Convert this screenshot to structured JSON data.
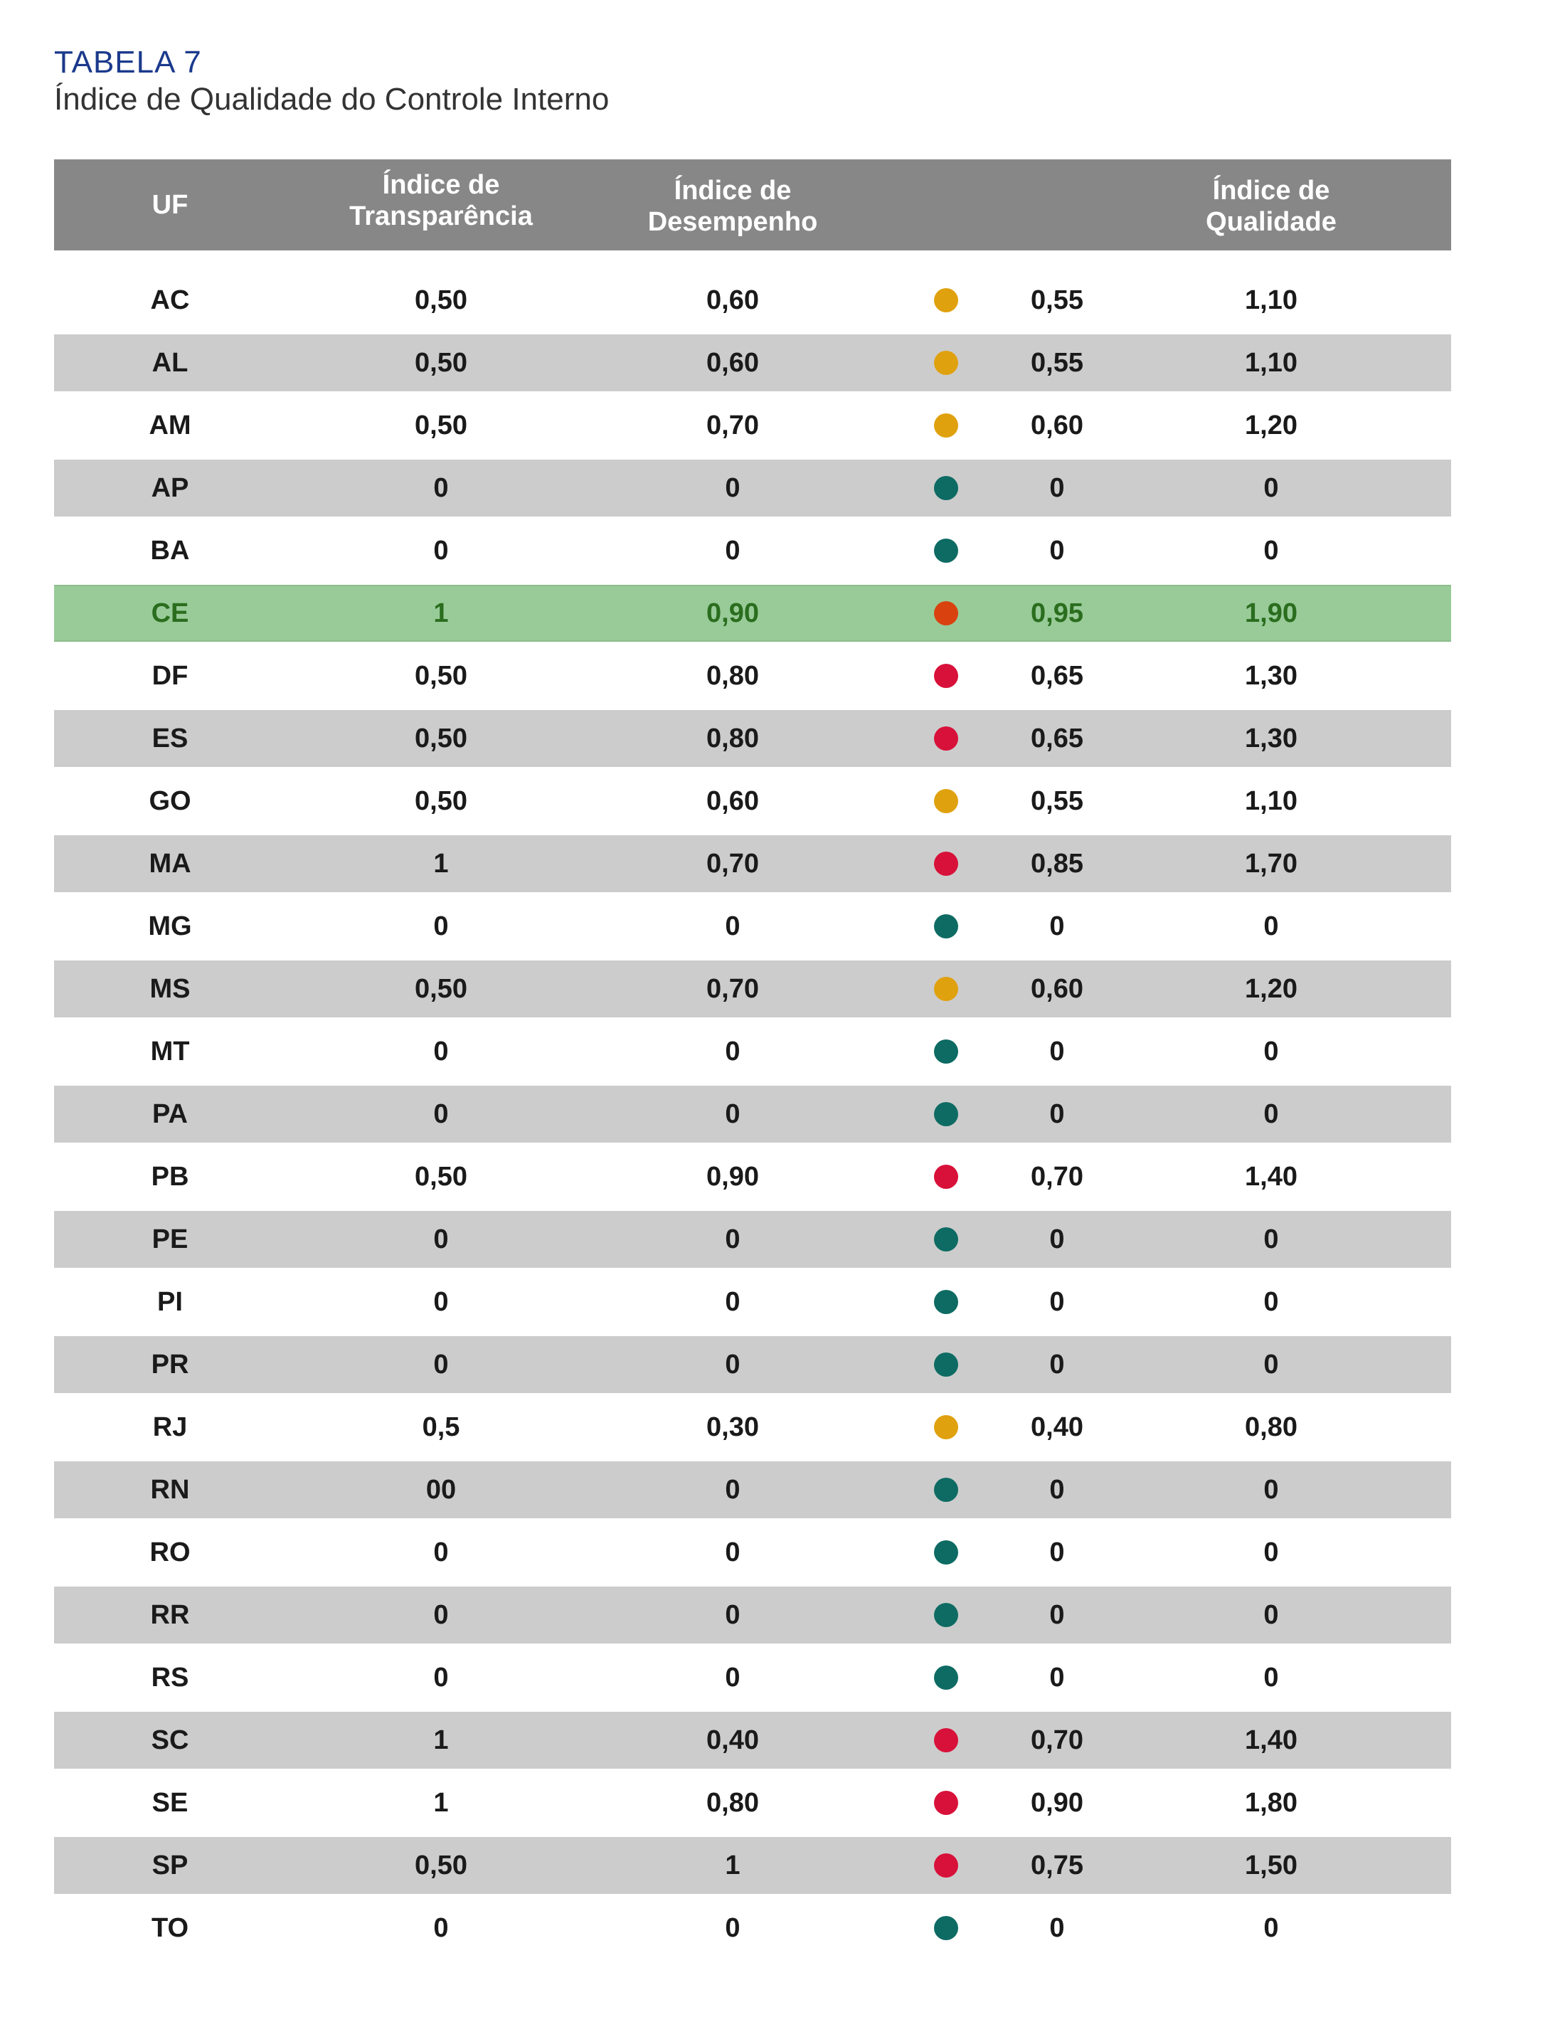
{
  "caption": {
    "label": "TABELA  7",
    "title": "Índice de Qualidade do Controle Interno"
  },
  "colors": {
    "yellow": "#e0a10e",
    "teal": "#0d6b63",
    "red": "#d8113a",
    "orange": "#d9410f"
  },
  "table": {
    "headers": {
      "uf": "UF",
      "transparencia": "Índice de\nTransparência",
      "desempenho": "Índice de\nDesempenho",
      "indicador": "",
      "qualidade": "Índice de\nQualidade"
    },
    "rows": [
      {
        "uf": "AC",
        "transparencia": "0,50",
        "desempenho": "0,60",
        "status": "yellow",
        "indice": "0,55",
        "qualidade": "1,10"
      },
      {
        "uf": "AL",
        "transparencia": "0,50",
        "desempenho": "0,60",
        "status": "yellow",
        "indice": "0,55",
        "qualidade": "1,10"
      },
      {
        "uf": "AM",
        "transparencia": "0,50",
        "desempenho": "0,70",
        "status": "yellow",
        "indice": "0,60",
        "qualidade": "1,20"
      },
      {
        "uf": "AP",
        "transparencia": "0",
        "desempenho": "0",
        "status": "teal",
        "indice": "0",
        "qualidade": "0"
      },
      {
        "uf": "BA",
        "transparencia": "0",
        "desempenho": "0",
        "status": "teal",
        "indice": "0",
        "qualidade": "0"
      },
      {
        "uf": "CE",
        "transparencia": "1",
        "desempenho": "0,90",
        "status": "orange",
        "indice": "0,95",
        "qualidade": "1,90",
        "highlight": true
      },
      {
        "uf": "DF",
        "transparencia": "0,50",
        "desempenho": "0,80",
        "status": "red",
        "indice": "0,65",
        "qualidade": "1,30"
      },
      {
        "uf": "ES",
        "transparencia": "0,50",
        "desempenho": "0,80",
        "status": "red",
        "indice": "0,65",
        "qualidade": "1,30"
      },
      {
        "uf": "GO",
        "transparencia": "0,50",
        "desempenho": "0,60",
        "status": "yellow",
        "indice": "0,55",
        "qualidade": "1,10"
      },
      {
        "uf": "MA",
        "transparencia": "1",
        "desempenho": "0,70",
        "status": "red",
        "indice": "0,85",
        "qualidade": "1,70"
      },
      {
        "uf": "MG",
        "transparencia": "0",
        "desempenho": "0",
        "status": "teal",
        "indice": "0",
        "qualidade": "0"
      },
      {
        "uf": "MS",
        "transparencia": "0,50",
        "desempenho": "0,70",
        "status": "yellow",
        "indice": "0,60",
        "qualidade": "1,20"
      },
      {
        "uf": "MT",
        "transparencia": "0",
        "desempenho": "0",
        "status": "teal",
        "indice": "0",
        "qualidade": "0"
      },
      {
        "uf": "PA",
        "transparencia": "0",
        "desempenho": "0",
        "status": "teal",
        "indice": "0",
        "qualidade": "0"
      },
      {
        "uf": "PB",
        "transparencia": "0,50",
        "desempenho": "0,90",
        "status": "red",
        "indice": "0,70",
        "qualidade": "1,40"
      },
      {
        "uf": "PE",
        "transparencia": "0",
        "desempenho": "0",
        "status": "teal",
        "indice": "0",
        "qualidade": "0"
      },
      {
        "uf": "PI",
        "transparencia": "0",
        "desempenho": "0",
        "status": "teal",
        "indice": "0",
        "qualidade": "0"
      },
      {
        "uf": "PR",
        "transparencia": "0",
        "desempenho": "0",
        "status": "teal",
        "indice": "0",
        "qualidade": "0"
      },
      {
        "uf": "RJ",
        "transparencia": "0,5",
        "desempenho": "0,30",
        "status": "yellow",
        "indice": "0,40",
        "qualidade": "0,80"
      },
      {
        "uf": "RN",
        "transparencia": "00",
        "desempenho": "0",
        "status": "teal",
        "indice": "0",
        "qualidade": "0"
      },
      {
        "uf": "RO",
        "transparencia": "0",
        "desempenho": "0",
        "status": "teal",
        "indice": "0",
        "qualidade": "0"
      },
      {
        "uf": "RR",
        "transparencia": "0",
        "desempenho": "0",
        "status": "teal",
        "indice": "0",
        "qualidade": "0"
      },
      {
        "uf": "RS",
        "transparencia": "0",
        "desempenho": "0",
        "status": "teal",
        "indice": "0",
        "qualidade": "0"
      },
      {
        "uf": "SC",
        "transparencia": "1",
        "desempenho": "0,40",
        "status": "red",
        "indice": "0,70",
        "qualidade": "1,40"
      },
      {
        "uf": "SE",
        "transparencia": "1",
        "desempenho": "0,80",
        "status": "red",
        "indice": "0,90",
        "qualidade": "1,80"
      },
      {
        "uf": "SP",
        "transparencia": "0,50",
        "desempenho": "1",
        "status": "red",
        "indice": "0,75",
        "qualidade": "1,50"
      },
      {
        "uf": "TO",
        "transparencia": "0",
        "desempenho": "0",
        "status": "teal",
        "indice": "0",
        "qualidade": "0"
      }
    ]
  }
}
